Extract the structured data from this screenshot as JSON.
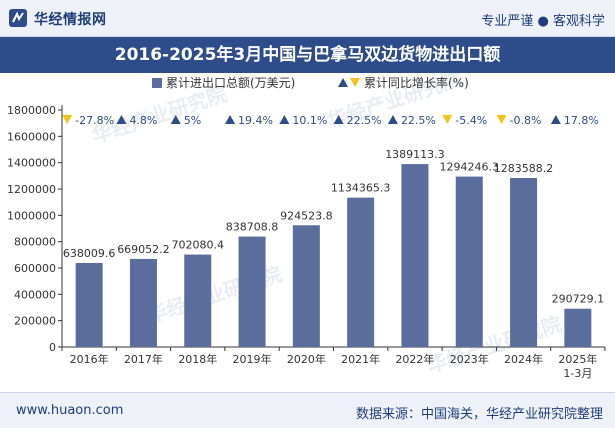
{
  "header": {
    "brand": "华经情报网",
    "slogan": "专业严谨 ● 客观科学"
  },
  "footer": {
    "website": "www.huaon.com",
    "source": "数据来源：中国海关，华经产业研究院整理"
  },
  "watermark": "华经产业研究院",
  "colors": {
    "bar": "#5a6d9c",
    "up": "#2e4b8a",
    "down": "#f0c419",
    "header_bg": "#eef2f8",
    "title_bg": "#2e4b8a"
  },
  "chart_data": {
    "type": "bar",
    "title": "2016-2025年3月中国与巴拿马双边货物进出口额",
    "categories": [
      "2016年",
      "2017年",
      "2018年",
      "2019年",
      "2020年",
      "2021年",
      "2022年",
      "2023年",
      "2024年",
      "2025年\n1-3月"
    ],
    "series": [
      {
        "name": "累计进出口总额(万美元)",
        "values": [
          638009.6,
          669052.2,
          702080.4,
          838708.8,
          924523.8,
          1134365.3,
          1389113.3,
          1294246.3,
          1283588.2,
          290729.1
        ],
        "labels": [
          "638009.6",
          "669052.2",
          "702080.4",
          "838708.8",
          "924523.8",
          "1134365.3",
          "1389113.3",
          "1294246.3",
          "1283588.2",
          "290729.1"
        ]
      },
      {
        "name": "累计同比增长率(%)",
        "values": [
          -27.8,
          4.8,
          5,
          19.4,
          10.1,
          22.5,
          22.5,
          -5.4,
          -0.8,
          17.8
        ],
        "labels": [
          "-27.8%",
          "4.8%",
          "5%",
          "19.4%",
          "10.1%",
          "22.5%",
          "22.5%",
          "-5.4%",
          "-0.8%",
          "17.8%"
        ]
      }
    ],
    "y_ticks": [
      "0",
      "200000",
      "400000",
      "600000",
      "800000",
      "1000000",
      "1200000",
      "1400000",
      "1600000",
      "1800000"
    ],
    "ylim": [
      0,
      1800000
    ],
    "grid": false,
    "legend_position": "top-center"
  }
}
